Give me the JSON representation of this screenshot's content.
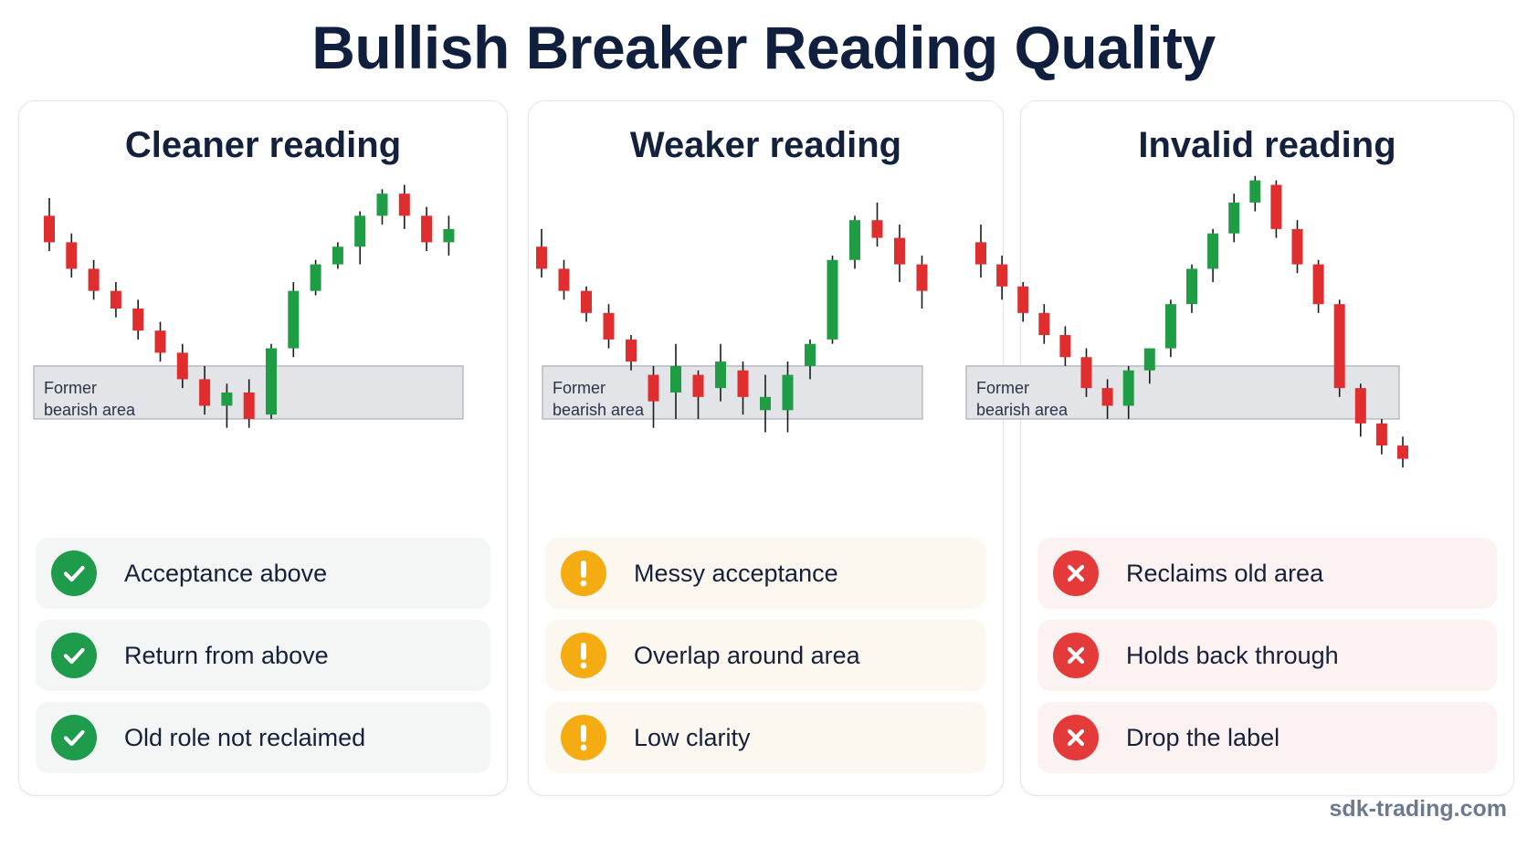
{
  "title": "Bullish Breaker Reading Quality",
  "footer": "sdk-trading.com",
  "colors": {
    "bullish": "#1f9d45",
    "bearish": "#e02d2d",
    "zone_fill": "#e2e4e8",
    "zone_stroke": "#a9aeb8",
    "good": "#1e9b4b",
    "warn": "#f5ab12",
    "bad": "#e53a3a"
  },
  "panels": [
    {
      "title": "Cleaner reading",
      "status": "good",
      "icon": "check-icon",
      "zone_label": [
        "Former",
        "bearish area"
      ],
      "criteria": [
        "Acceptance above",
        "Return from above",
        "Old role not reclaimed"
      ]
    },
    {
      "title": "Weaker reading",
      "status": "warn",
      "icon": "exclamation-icon",
      "zone_label": [
        "Former",
        "bearish area"
      ],
      "criteria": [
        "Messy acceptance",
        "Overlap around area",
        "Low clarity"
      ]
    },
    {
      "title": "Invalid reading",
      "status": "bad",
      "icon": "cross-icon",
      "zone_label": [
        "Former",
        "bearish area"
      ],
      "criteria": [
        "Reclaims old area",
        "Holds back through",
        "Drop the label"
      ]
    }
  ],
  "chart_data": [
    {
      "type": "candlestick",
      "title": "Cleaner reading",
      "zone": {
        "label": "Former bearish area",
        "low": 40,
        "high": 52
      },
      "candles": [
        {
          "o": 86,
          "h": 90,
          "l": 78,
          "c": 80
        },
        {
          "o": 80,
          "h": 82,
          "l": 72,
          "c": 74
        },
        {
          "o": 74,
          "h": 76,
          "l": 67,
          "c": 69
        },
        {
          "o": 69,
          "h": 71,
          "l": 63,
          "c": 65
        },
        {
          "o": 65,
          "h": 67,
          "l": 58,
          "c": 60
        },
        {
          "o": 60,
          "h": 62,
          "l": 53,
          "c": 55
        },
        {
          "o": 55,
          "h": 57,
          "l": 47,
          "c": 49
        },
        {
          "o": 49,
          "h": 52,
          "l": 41,
          "c": 43
        },
        {
          "o": 43,
          "h": 48,
          "l": 38,
          "c": 46
        },
        {
          "o": 46,
          "h": 49,
          "l": 38,
          "c": 40
        },
        {
          "o": 41,
          "h": 57,
          "l": 40,
          "c": 56
        },
        {
          "o": 56,
          "h": 71,
          "l": 54,
          "c": 69
        },
        {
          "o": 69,
          "h": 76,
          "l": 68,
          "c": 75
        },
        {
          "o": 75,
          "h": 80,
          "l": 74,
          "c": 79
        },
        {
          "o": 79,
          "h": 87,
          "l": 75,
          "c": 86
        },
        {
          "o": 86,
          "h": 92,
          "l": 84,
          "c": 91
        },
        {
          "o": 91,
          "h": 93,
          "l": 83,
          "c": 86
        },
        {
          "o": 86,
          "h": 88,
          "l": 78,
          "c": 80
        },
        {
          "o": 80,
          "h": 86,
          "l": 77,
          "c": 83
        }
      ]
    },
    {
      "type": "candlestick",
      "title": "Weaker reading",
      "zone": {
        "label": "Former bearish area",
        "low": 40,
        "high": 52
      },
      "candles": [
        {
          "o": 79,
          "h": 83,
          "l": 72,
          "c": 74
        },
        {
          "o": 74,
          "h": 76,
          "l": 67,
          "c": 69
        },
        {
          "o": 69,
          "h": 70,
          "l": 62,
          "c": 64
        },
        {
          "o": 64,
          "h": 66,
          "l": 56,
          "c": 58
        },
        {
          "o": 58,
          "h": 59,
          "l": 51,
          "c": 53
        },
        {
          "o": 50,
          "h": 52,
          "l": 38,
          "c": 44
        },
        {
          "o": 46,
          "h": 57,
          "l": 40,
          "c": 52
        },
        {
          "o": 50,
          "h": 51,
          "l": 40,
          "c": 45
        },
        {
          "o": 47,
          "h": 57,
          "l": 44,
          "c": 53
        },
        {
          "o": 51,
          "h": 53,
          "l": 41,
          "c": 45
        },
        {
          "o": 42,
          "h": 50,
          "l": 37,
          "c": 45
        },
        {
          "o": 42,
          "h": 53,
          "l": 37,
          "c": 50
        },
        {
          "o": 52,
          "h": 58,
          "l": 49,
          "c": 57
        },
        {
          "o": 58,
          "h": 77,
          "l": 57,
          "c": 76
        },
        {
          "o": 76,
          "h": 86,
          "l": 74,
          "c": 85
        },
        {
          "o": 85,
          "h": 89,
          "l": 79,
          "c": 81
        },
        {
          "o": 81,
          "h": 84,
          "l": 71,
          "c": 75
        },
        {
          "o": 75,
          "h": 77,
          "l": 65,
          "c": 69
        }
      ]
    },
    {
      "type": "candlestick",
      "title": "Invalid reading",
      "zone": {
        "label": "Former bearish area",
        "low": 40,
        "high": 52
      },
      "candles": [
        {
          "o": 80,
          "h": 84,
          "l": 72,
          "c": 75
        },
        {
          "o": 75,
          "h": 77,
          "l": 67,
          "c": 70
        },
        {
          "o": 70,
          "h": 71,
          "l": 62,
          "c": 64
        },
        {
          "o": 64,
          "h": 66,
          "l": 57,
          "c": 59
        },
        {
          "o": 59,
          "h": 61,
          "l": 52,
          "c": 54
        },
        {
          "o": 54,
          "h": 56,
          "l": 45,
          "c": 47
        },
        {
          "o": 47,
          "h": 49,
          "l": 40,
          "c": 43
        },
        {
          "o": 43,
          "h": 52,
          "l": 40,
          "c": 51
        },
        {
          "o": 51,
          "h": 56,
          "l": 48,
          "c": 56
        },
        {
          "o": 56,
          "h": 67,
          "l": 54,
          "c": 66
        },
        {
          "o": 66,
          "h": 75,
          "l": 64,
          "c": 74
        },
        {
          "o": 74,
          "h": 83,
          "l": 71,
          "c": 82
        },
        {
          "o": 82,
          "h": 91,
          "l": 80,
          "c": 89
        },
        {
          "o": 89,
          "h": 95,
          "l": 87,
          "c": 94
        },
        {
          "o": 93,
          "h": 94,
          "l": 81,
          "c": 83
        },
        {
          "o": 83,
          "h": 85,
          "l": 73,
          "c": 75
        },
        {
          "o": 75,
          "h": 76,
          "l": 64,
          "c": 66
        },
        {
          "o": 66,
          "h": 67,
          "l": 45,
          "c": 47
        },
        {
          "o": 47,
          "h": 48,
          "l": 36,
          "c": 39
        },
        {
          "o": 39,
          "h": 40,
          "l": 32,
          "c": 34
        },
        {
          "o": 34,
          "h": 36,
          "l": 29,
          "c": 31
        }
      ]
    }
  ]
}
